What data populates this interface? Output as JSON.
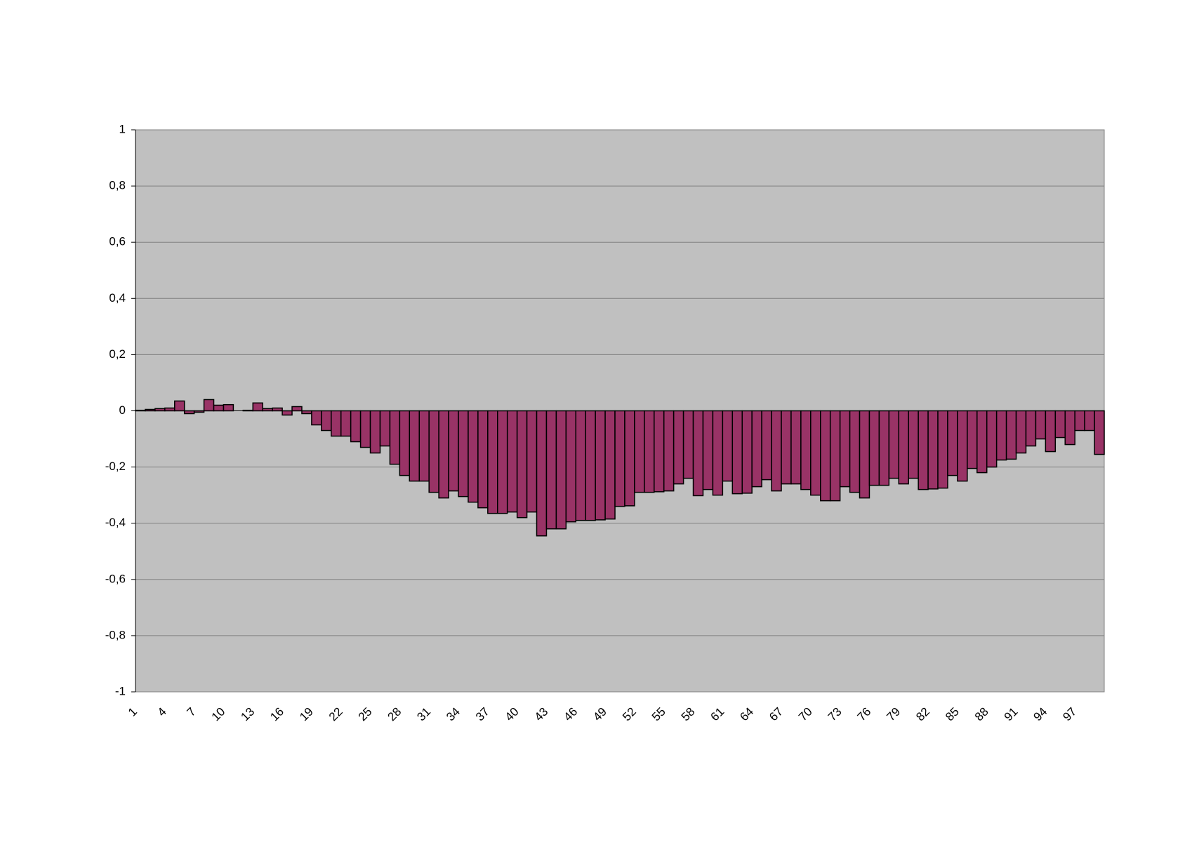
{
  "chart_data": {
    "type": "bar",
    "color": "#993366",
    "grid": true,
    "categories": [
      "1",
      null,
      null,
      "4",
      null,
      null,
      "7",
      null,
      null,
      "10",
      null,
      null,
      "13",
      null,
      null,
      "16",
      null,
      null,
      "19",
      null,
      null,
      "22",
      null,
      null,
      "25",
      null,
      null,
      "28",
      null,
      null,
      "31",
      null,
      null,
      "34",
      null,
      null,
      "37",
      null,
      null,
      "40",
      null,
      null,
      "43",
      null,
      null,
      "46",
      null,
      null,
      "49",
      null,
      null,
      "52",
      null,
      null,
      "55",
      null,
      null,
      "58",
      null,
      null,
      "61",
      null,
      null,
      "64",
      null,
      null,
      "67",
      null,
      null,
      "70",
      null,
      null,
      "73",
      null,
      null,
      "76",
      null,
      null,
      "79",
      null,
      null,
      "82",
      null,
      null,
      "85",
      null,
      null,
      "88",
      null,
      null,
      "91",
      null,
      null,
      "94",
      null,
      null,
      "97",
      null,
      null
    ],
    "values": [
      0.002,
      0.005,
      0.008,
      0.01,
      0.035,
      -0.01,
      -0.005,
      0.04,
      0.02,
      0.022,
      null,
      0.002,
      0.028,
      0.008,
      0.01,
      -0.015,
      0.015,
      -0.01,
      -0.05,
      -0.07,
      -0.09,
      -0.09,
      -0.11,
      -0.13,
      -0.15,
      -0.125,
      -0.19,
      -0.23,
      -0.25,
      -0.25,
      -0.29,
      -0.31,
      -0.285,
      -0.305,
      -0.325,
      -0.345,
      -0.365,
      -0.365,
      -0.36,
      -0.38,
      -0.36,
      -0.445,
      -0.42,
      -0.42,
      -0.395,
      -0.39,
      -0.39,
      -0.388,
      -0.385,
      -0.34,
      -0.338,
      -0.29,
      -0.29,
      -0.288,
      -0.285,
      -0.26,
      -0.24,
      -0.302,
      -0.28,
      -0.3,
      -0.25,
      -0.295,
      -0.293,
      -0.27,
      -0.245,
      -0.285,
      -0.26,
      -0.26,
      -0.28,
      -0.3,
      -0.32,
      -0.32,
      -0.27,
      -0.29,
      -0.31,
      -0.265,
      -0.265,
      -0.24,
      -0.26,
      -0.24,
      -0.28,
      -0.278,
      -0.275,
      -0.23,
      -0.25,
      -0.205,
      -0.22,
      -0.2,
      -0.175,
      -0.172,
      -0.15,
      -0.125,
      -0.1,
      -0.145,
      -0.095,
      -0.12,
      -0.07,
      -0.07,
      -0.155
    ],
    "ylim": [
      -1,
      1
    ],
    "yticks": [
      -1,
      {
        "value": -0.8,
        "label": "-0,8"
      },
      {
        "value": -0.6,
        "label": "-0,6"
      },
      {
        "value": -0.4,
        "label": "-0,4"
      },
      {
        "value": -0.2,
        "label": "-0,2"
      },
      0,
      {
        "value": 0.2,
        "label": "0,2"
      },
      {
        "value": 0.4,
        "label": "0,4"
      },
      {
        "value": 0.6,
        "label": "0,6"
      },
      {
        "value": 0.8,
        "label": "0,8"
      },
      1
    ]
  }
}
